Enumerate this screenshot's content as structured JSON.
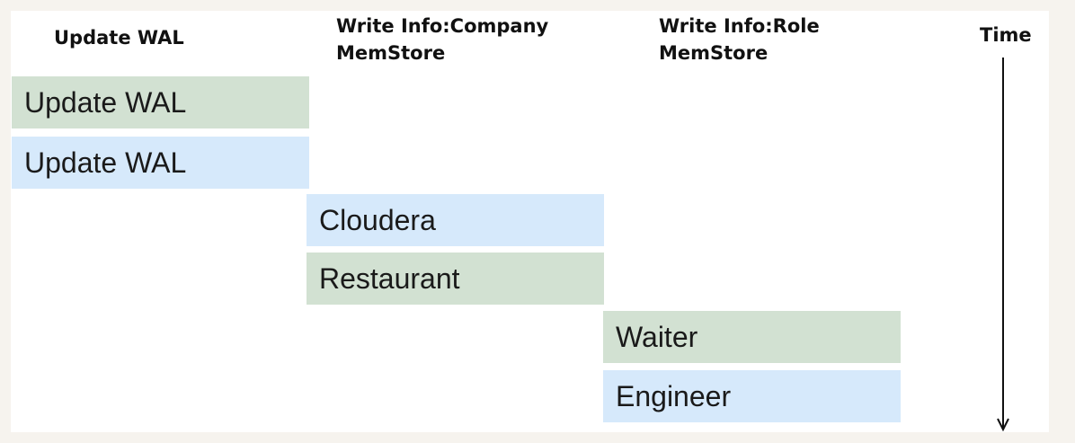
{
  "colors": {
    "green": "#d2e1d2",
    "blue": "#d6e9fb",
    "arrow": "#111111"
  },
  "headers": {
    "update_wal": "Update WAL",
    "company": {
      "line1": "Write Info:Company",
      "line2": "MemStore"
    },
    "role": {
      "line1": "Write Info:Role",
      "line2": "MemStore"
    },
    "time": "Time"
  },
  "blocks": [
    {
      "label": "Update WAL",
      "color": "green"
    },
    {
      "label": "Update WAL",
      "color": "blue"
    },
    {
      "label": "Cloudera",
      "color": "blue"
    },
    {
      "label": "Restaurant",
      "color": "green"
    },
    {
      "label": "Waiter",
      "color": "green"
    },
    {
      "label": "Engineer",
      "color": "blue"
    }
  ]
}
